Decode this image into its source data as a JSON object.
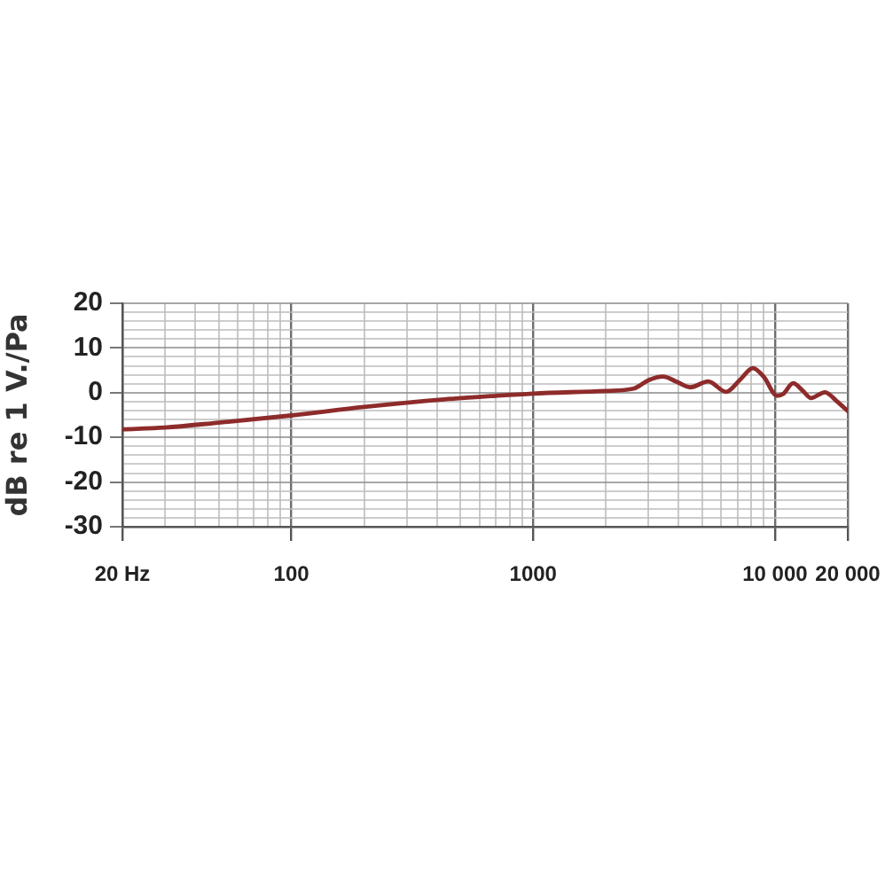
{
  "chart_data": {
    "type": "line",
    "ylabel": "dB re 1 V./Pa",
    "x": [
      20,
      30,
      50,
      100,
      200,
      430,
      700,
      1000,
      2000,
      2600,
      2800,
      3000,
      3450,
      3900,
      4460,
      5290,
      6280,
      7200,
      8100,
      9000,
      10200,
      10800,
      11900,
      13000,
      14100,
      16100,
      18000,
      20000
    ],
    "series": [
      {
        "color": "#8e2b2b",
        "values": [
          -8.2,
          -7.8,
          -6.7,
          -5.1,
          -3.2,
          -1.5,
          -0.7,
          -0.2,
          0.4,
          0.9,
          1.8,
          2.8,
          3.6,
          2.5,
          1.2,
          2.5,
          0.2,
          3,
          5.5,
          3.5,
          -0.7,
          -0.3,
          2.1,
          0.5,
          -1.2,
          0.1,
          -1.9,
          -4.1
        ]
      }
    ],
    "log": "x",
    "xlim": [
      20,
      20000
    ],
    "ylim": [
      -30,
      20
    ],
    "xticks": [
      {
        "value": 20,
        "label": "20 Hz"
      },
      {
        "value": 30,
        "label": null
      },
      {
        "value": 40,
        "label": null
      },
      {
        "value": 50,
        "label": null
      },
      {
        "value": 60,
        "label": null
      },
      {
        "value": 70,
        "label": null
      },
      {
        "value": 80,
        "label": null
      },
      {
        "value": 90,
        "label": null
      },
      100,
      {
        "value": 200,
        "label": null
      },
      {
        "value": 300,
        "label": null
      },
      {
        "value": 400,
        "label": null
      },
      {
        "value": 500,
        "label": null
      },
      {
        "value": 600,
        "label": null
      },
      {
        "value": 700,
        "label": null
      },
      {
        "value": 800,
        "label": null
      },
      {
        "value": 900,
        "label": null
      },
      1000,
      {
        "value": 2000,
        "label": null
      },
      {
        "value": 3000,
        "label": null
      },
      {
        "value": 4000,
        "label": null
      },
      {
        "value": 5000,
        "label": null
      },
      {
        "value": 6000,
        "label": null
      },
      {
        "value": 7000,
        "label": null
      },
      {
        "value": 8000,
        "label": null
      },
      {
        "value": 9000,
        "label": null
      },
      {
        "value": 10000,
        "label": "10 000"
      },
      {
        "value": 20000,
        "label": "20 000"
      }
    ],
    "yticks": [
      -30,
      {
        "value": -28,
        "label": null
      },
      {
        "value": -26,
        "label": null
      },
      {
        "value": -24,
        "label": null
      },
      {
        "value": -22,
        "label": null
      },
      -20,
      {
        "value": -18,
        "label": null
      },
      {
        "value": -16,
        "label": null
      },
      {
        "value": -14,
        "label": null
      },
      {
        "value": -12,
        "label": null
      },
      -10,
      {
        "value": -8,
        "label": null
      },
      {
        "value": -6,
        "label": null
      },
      {
        "value": -4,
        "label": null
      },
      {
        "value": -2,
        "label": null
      },
      0,
      {
        "value": 2,
        "label": null
      },
      {
        "value": 4,
        "label": null
      },
      {
        "value": 6,
        "label": null
      },
      {
        "value": 8,
        "label": null
      },
      10,
      {
        "value": 12,
        "label": null
      },
      {
        "value": 14,
        "label": null
      },
      {
        "value": 16,
        "label": null
      },
      {
        "value": 18,
        "label": null
      },
      20
    ],
    "grid": true,
    "legend": false,
    "marker": "none",
    "line_style": "solid"
  }
}
